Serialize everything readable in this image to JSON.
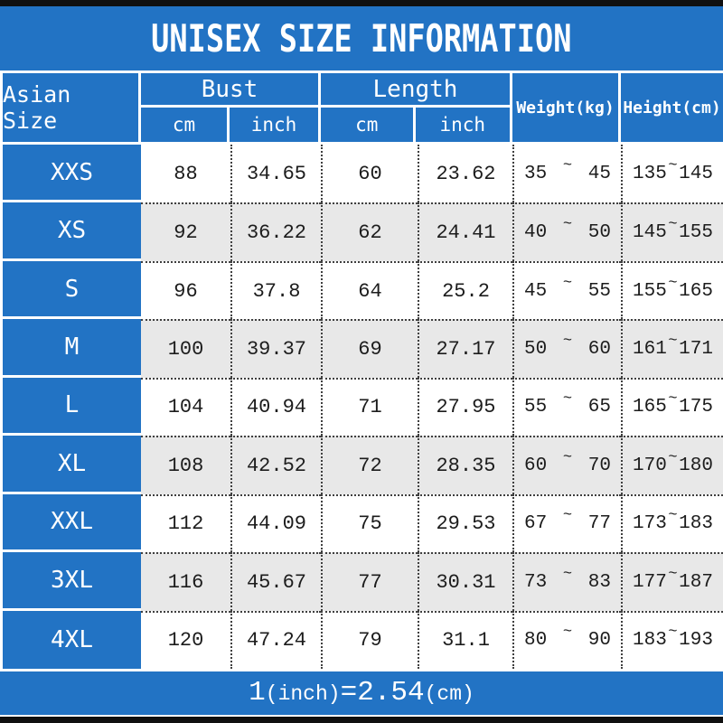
{
  "title": "UNISEX SIZE INFORMATION",
  "tilde": "~",
  "colors": {
    "accent_blue": "#2273c4",
    "row_alt_gray": "#e8e8e8",
    "row_white": "#ffffff",
    "frame_black": "#101010",
    "text_dark": "#1c1c1c"
  },
  "header": {
    "size_col": "Asian Size",
    "bust_label": "Bust",
    "length_label": "Length",
    "cm": "cm",
    "inch": "inch",
    "weight": "Weight(kg)",
    "height": "Height(cm)"
  },
  "footer": {
    "num": "1",
    "unit_inch": "(inch)",
    "equals_value": "=2.54",
    "unit_cm": "(cm)"
  },
  "chart_data": {
    "type": "table",
    "title": "UNISEX SIZE INFORMATION",
    "columns": [
      "Asian Size",
      "Bust cm",
      "Bust inch",
      "Length cm",
      "Length inch",
      "Weight(kg)",
      "Height(cm)"
    ],
    "note": "1(inch)=2.54(cm)",
    "rows": [
      {
        "size": "XXS",
        "bust_cm": "88",
        "bust_inch": "34.65",
        "length_cm": "60",
        "length_inch": "23.62",
        "weight_min": "35",
        "weight_max": "45",
        "height_min": "135",
        "height_max": "145"
      },
      {
        "size": "XS",
        "bust_cm": "92",
        "bust_inch": "36.22",
        "length_cm": "62",
        "length_inch": "24.41",
        "weight_min": "40",
        "weight_max": "50",
        "height_min": "145",
        "height_max": "155"
      },
      {
        "size": "S",
        "bust_cm": "96",
        "bust_inch": "37.8",
        "length_cm": "64",
        "length_inch": "25.2",
        "weight_min": "45",
        "weight_max": "55",
        "height_min": "155",
        "height_max": "165"
      },
      {
        "size": "M",
        "bust_cm": "100",
        "bust_inch": "39.37",
        "length_cm": "69",
        "length_inch": "27.17",
        "weight_min": "50",
        "weight_max": "60",
        "height_min": "161",
        "height_max": "171"
      },
      {
        "size": "L",
        "bust_cm": "104",
        "bust_inch": "40.94",
        "length_cm": "71",
        "length_inch": "27.95",
        "weight_min": "55",
        "weight_max": "65",
        "height_min": "165",
        "height_max": "175"
      },
      {
        "size": "XL",
        "bust_cm": "108",
        "bust_inch": "42.52",
        "length_cm": "72",
        "length_inch": "28.35",
        "weight_min": "60",
        "weight_max": "70",
        "height_min": "170",
        "height_max": "180"
      },
      {
        "size": "XXL",
        "bust_cm": "112",
        "bust_inch": "44.09",
        "length_cm": "75",
        "length_inch": "29.53",
        "weight_min": "67",
        "weight_max": "77",
        "height_min": "173",
        "height_max": "183"
      },
      {
        "size": "3XL",
        "bust_cm": "116",
        "bust_inch": "45.67",
        "length_cm": "77",
        "length_inch": "30.31",
        "weight_min": "73",
        "weight_max": "83",
        "height_min": "177",
        "height_max": "187"
      },
      {
        "size": "4XL",
        "bust_cm": "120",
        "bust_inch": "47.24",
        "length_cm": "79",
        "length_inch": "31.1",
        "weight_min": "80",
        "weight_max": "90",
        "height_min": "183",
        "height_max": "193"
      }
    ]
  }
}
